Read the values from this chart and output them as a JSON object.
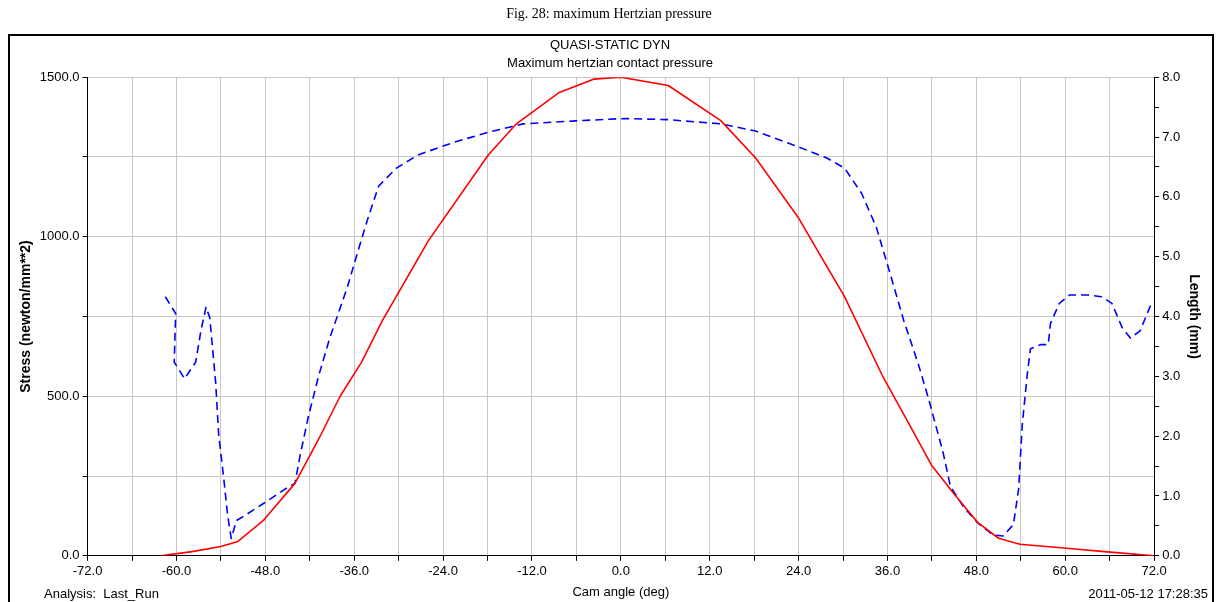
{
  "chart_data": {
    "type": "line",
    "title": "QUASI-STATIC DYN",
    "subtitle": "Maximum hertzian contact pressure",
    "xlabel": "Cam angle (deg)",
    "ylabel": "Stress (newton/mm**2)",
    "y2label": "Length (mm)",
    "annotations": [
      "Fig. 28: maximum Hertzian pressure",
      "Analysis:  Last_Run",
      "2011-05-12 17:28:35"
    ],
    "xlim": [
      -72,
      72
    ],
    "xticks": [
      {
        "value": -72,
        "label": "-72.0"
      },
      {
        "value": -66,
        "label": null
      },
      {
        "value": -60,
        "label": "-60.0"
      },
      {
        "value": -54,
        "label": null
      },
      {
        "value": -48,
        "label": "-48.0"
      },
      {
        "value": -42,
        "label": null
      },
      {
        "value": -36,
        "label": "-36.0"
      },
      {
        "value": -30,
        "label": null
      },
      {
        "value": -24,
        "label": "-24.0"
      },
      {
        "value": -18,
        "label": null
      },
      {
        "value": -12,
        "label": "-12.0"
      },
      {
        "value": -6,
        "label": null
      },
      {
        "value": 0,
        "label": "0.0"
      },
      {
        "value": 6,
        "label": null
      },
      {
        "value": 12,
        "label": "12.0"
      },
      {
        "value": 18,
        "label": null
      },
      {
        "value": 24,
        "label": "24.0"
      },
      {
        "value": 30,
        "label": null
      },
      {
        "value": 36,
        "label": "36.0"
      },
      {
        "value": 42,
        "label": null
      },
      {
        "value": 48,
        "label": "48.0"
      },
      {
        "value": 54,
        "label": null
      },
      {
        "value": 60,
        "label": "60.0"
      },
      {
        "value": 66,
        "label": null
      },
      {
        "value": 72,
        "label": "72.0"
      }
    ],
    "ylim": [
      0,
      1500
    ],
    "yticks": [
      {
        "value": 0,
        "label": "0.0"
      },
      {
        "value": 250,
        "label": null
      },
      {
        "value": 500,
        "label": "500.0"
      },
      {
        "value": 750,
        "label": null
      },
      {
        "value": 1000,
        "label": "1000.0"
      },
      {
        "value": 1250,
        "label": null
      },
      {
        "value": 1500,
        "label": "1500.0"
      }
    ],
    "y2lim": [
      0,
      8
    ],
    "y2ticks": [
      {
        "value": 0,
        "label": "0.0"
      },
      {
        "value": 0.5,
        "label": null
      },
      {
        "value": 1,
        "label": "1.0"
      },
      {
        "value": 1.5,
        "label": null
      },
      {
        "value": 2,
        "label": "2.0"
      },
      {
        "value": 2.5,
        "label": null
      },
      {
        "value": 3,
        "label": "3.0"
      },
      {
        "value": 3.5,
        "label": null
      },
      {
        "value": 4,
        "label": "4.0"
      },
      {
        "value": 4.5,
        "label": null
      },
      {
        "value": 5,
        "label": "5.0"
      },
      {
        "value": 5.5,
        "label": null
      },
      {
        "value": 6,
        "label": "6.0"
      },
      {
        "value": 6.5,
        "label": null
      },
      {
        "value": 7,
        "label": "7.0"
      },
      {
        "value": 7.5,
        "label": null
      },
      {
        "value": 8,
        "label": "8.0"
      }
    ],
    "grid": true,
    "legend": false,
    "marker": "none",
    "series": [
      {
        "color": "#ff0000",
        "line_style": "solid",
        "x": [
          -62.1,
          -57.9,
          -54.0,
          -51.7,
          -48.3,
          -44.0,
          -40.7,
          -37.9,
          -35.0,
          -32.2,
          -26.0,
          -17.9,
          -14.1,
          -8.4,
          -3.6,
          0,
          6.4,
          13.5,
          18.2,
          23.9,
          30.2,
          35.3,
          38.7,
          42.0,
          45.3,
          48.2,
          51.0,
          53.9,
          60.6,
          65.3,
          72.0
        ],
        "values": [
          0,
          13,
          29,
          45,
          110,
          227,
          370,
          500,
          607,
          737,
          987,
          1256,
          1354,
          1451,
          1494,
          1500,
          1474,
          1364,
          1247,
          1062,
          812,
          565,
          422,
          282,
          185,
          104,
          55,
          36,
          23,
          13,
          0
        ]
      },
      {
        "color": "#0000ff",
        "line_style": "dashed",
        "axis": "y2",
        "x": [
          -61.5,
          -60.1,
          -60.3,
          -58.9,
          -57.4,
          -56.7,
          -56.0,
          -55.5,
          -54.7,
          -54.3,
          -53.6,
          -53.1,
          -52.6,
          -51.9,
          -51.2,
          -48.3,
          -45.4,
          -44.0,
          -43.3,
          -42.2,
          -40.8,
          -39.3,
          -36.9,
          -35.5,
          -34.1,
          -32.7,
          -30.3,
          -27.4,
          -22.6,
          -17.9,
          -13.2,
          -6.1,
          0.6,
          6.4,
          13.5,
          18.2,
          23.9,
          27.8,
          30.2,
          32.5,
          34.5,
          36.3,
          38.2,
          40.2,
          41.6,
          43.5,
          44.5,
          46.3,
          48.2,
          50.2,
          51.6,
          53.0,
          53.7,
          54.2,
          54.9,
          55.3,
          56.7,
          57.7,
          58.0,
          59.2,
          60.6,
          63.0,
          64.9,
          66.3,
          67.7,
          68.8,
          70.1,
          71.7
        ],
        "values": [
          4.33,
          4.05,
          3.24,
          2.96,
          3.24,
          3.76,
          4.16,
          3.98,
          2.89,
          2.03,
          1.28,
          0.69,
          0.29,
          0.59,
          0.64,
          0.87,
          1.11,
          1.21,
          1.68,
          2.32,
          3.01,
          3.64,
          4.5,
          5.09,
          5.66,
          6.18,
          6.48,
          6.7,
          6.91,
          7.08,
          7.22,
          7.27,
          7.31,
          7.29,
          7.22,
          7.1,
          6.84,
          6.65,
          6.48,
          6.06,
          5.49,
          4.74,
          3.93,
          3.19,
          2.6,
          1.73,
          1.16,
          0.81,
          0.55,
          0.35,
          0.33,
          0.52,
          1.11,
          2.2,
          3.06,
          3.46,
          3.53,
          3.53,
          3.88,
          4.22,
          4.36,
          4.36,
          4.33,
          4.22,
          3.81,
          3.64,
          3.76,
          4.24
        ]
      }
    ]
  }
}
